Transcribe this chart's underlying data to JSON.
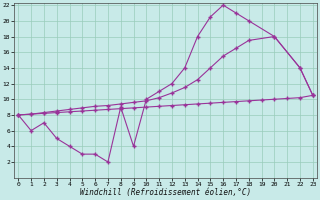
{
  "xlabel": "Windchill (Refroidissement éolien,°C)",
  "bg_color": "#c8eae8",
  "line_color": "#993399",
  "grid_color": "#99ccbb",
  "curve1_x": [
    0,
    1,
    2,
    3,
    4,
    5,
    6,
    7,
    8,
    9,
    10,
    11,
    12,
    13,
    14,
    15,
    16,
    17,
    18,
    20,
    22,
    23
  ],
  "curve1_y": [
    8,
    6,
    7,
    5,
    4,
    3,
    3,
    2,
    9,
    4,
    10,
    11,
    12,
    14,
    18,
    20.5,
    22,
    21,
    20,
    18,
    14,
    10.5
  ],
  "curve2_x": [
    0,
    1,
    2,
    3,
    4,
    5,
    6,
    7,
    8,
    9,
    10,
    11,
    12,
    13,
    14,
    15,
    16,
    17,
    18,
    19,
    20,
    21,
    22,
    23
  ],
  "curve2_y": [
    8,
    8.1,
    8.2,
    8.3,
    8.4,
    8.5,
    8.6,
    8.7,
    8.8,
    8.9,
    9.0,
    9.1,
    9.2,
    9.3,
    9.4,
    9.5,
    9.6,
    9.7,
    9.8,
    9.9,
    10.0,
    10.1,
    10.2,
    10.5
  ],
  "curve3_x": [
    0,
    1,
    2,
    3,
    4,
    5,
    6,
    7,
    8,
    9,
    10,
    11,
    12,
    13,
    14,
    15,
    16,
    17,
    18,
    20,
    22,
    23
  ],
  "curve3_y": [
    8,
    8.1,
    8.3,
    8.5,
    8.7,
    8.9,
    9.1,
    9.2,
    9.4,
    9.6,
    9.8,
    10.2,
    10.8,
    11.5,
    12.5,
    14,
    15.5,
    16.5,
    17.5,
    18,
    14,
    10.5
  ],
  "xmin": 0,
  "xmax": 23,
  "ymin": 0,
  "ymax": 22,
  "yticks": [
    2,
    4,
    6,
    8,
    10,
    12,
    14,
    16,
    18,
    20,
    22
  ],
  "xticks": [
    0,
    1,
    2,
    3,
    4,
    5,
    6,
    7,
    8,
    9,
    10,
    11,
    12,
    13,
    14,
    15,
    16,
    17,
    18,
    19,
    20,
    21,
    22,
    23
  ],
  "figw": 3.2,
  "figh": 2.0
}
